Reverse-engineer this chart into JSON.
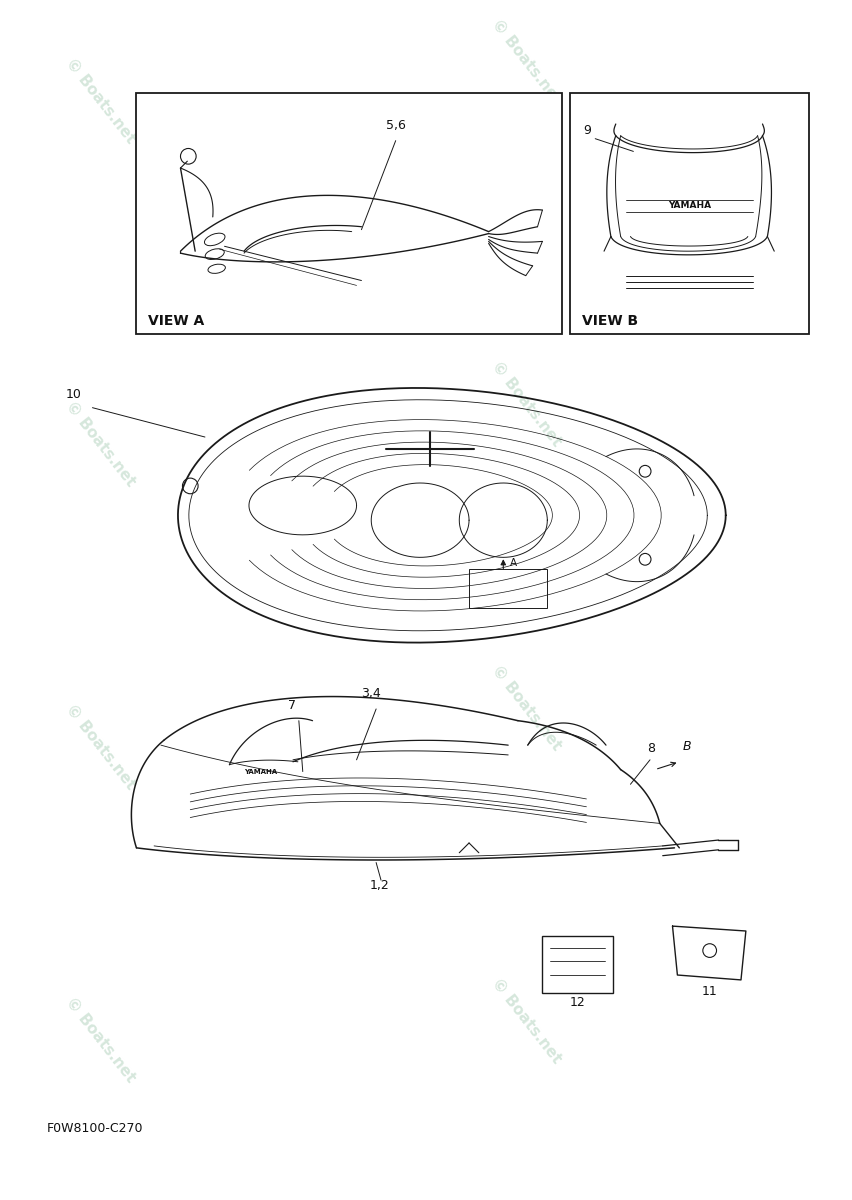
{
  "bg_color": "#ffffff",
  "watermark_color": "#c8dfd0",
  "watermark_text": "© Boats.net",
  "line_color": "#1a1a1a",
  "text_color": "#111111",
  "view_a_label": "VIEW A",
  "view_b_label": "VIEW B",
  "footer_code": "F0W8100-C270",
  "label_fontsize": 9,
  "small_fontsize": 8,
  "title_fontsize": 10
}
